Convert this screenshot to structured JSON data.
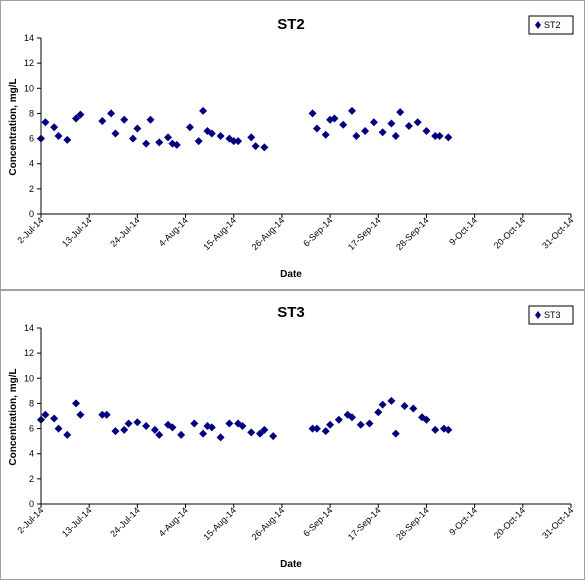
{
  "chart_data": [
    {
      "type": "scatter",
      "title": "ST2",
      "xlabel": "Date",
      "ylabel": "Concentration, mg/L",
      "ylim": [
        0,
        14
      ],
      "yticks": [
        0,
        2,
        4,
        6,
        8,
        10,
        12,
        14
      ],
      "xlim": [
        "2014-07-02",
        "2014-10-31"
      ],
      "xtick_labels": [
        "2-Jul-14",
        "13-Jul-14",
        "24-Jul-14",
        "4-Aug-14",
        "15-Aug-14",
        "26-Aug-14",
        "6-Sep-14",
        "17-Sep-14",
        "28-Sep-14",
        "9-Oct-14",
        "20-Oct-14",
        "31-Oct-14"
      ],
      "legend": "top-right",
      "grid": false,
      "marker_color": "#00007f",
      "series": [
        {
          "name": "ST2",
          "points": [
            [
              "2014-07-02",
              6.0
            ],
            [
              "2014-07-03",
              7.3
            ],
            [
              "2014-07-05",
              6.9
            ],
            [
              "2014-07-06",
              6.2
            ],
            [
              "2014-07-08",
              5.9
            ],
            [
              "2014-07-10",
              7.6
            ],
            [
              "2014-07-11",
              7.9
            ],
            [
              "2014-07-16",
              7.4
            ],
            [
              "2014-07-18",
              8.0
            ],
            [
              "2014-07-19",
              6.4
            ],
            [
              "2014-07-21",
              7.5
            ],
            [
              "2014-07-23",
              6.0
            ],
            [
              "2014-07-24",
              6.8
            ],
            [
              "2014-07-26",
              5.6
            ],
            [
              "2014-07-27",
              7.5
            ],
            [
              "2014-07-29",
              5.7
            ],
            [
              "2014-07-31",
              6.1
            ],
            [
              "2014-08-01",
              5.6
            ],
            [
              "2014-08-02",
              5.5
            ],
            [
              "2014-08-05",
              6.9
            ],
            [
              "2014-08-07",
              5.8
            ],
            [
              "2014-08-08",
              8.2
            ],
            [
              "2014-08-09",
              6.6
            ],
            [
              "2014-08-10",
              6.4
            ],
            [
              "2014-08-12",
              6.2
            ],
            [
              "2014-08-14",
              6.0
            ],
            [
              "2014-08-15",
              5.8
            ],
            [
              "2014-08-16",
              5.8
            ],
            [
              "2014-08-19",
              6.1
            ],
            [
              "2014-08-20",
              5.4
            ],
            [
              "2014-08-22",
              5.3
            ],
            [
              "2014-09-02",
              8.0
            ],
            [
              "2014-09-03",
              6.8
            ],
            [
              "2014-09-05",
              6.3
            ],
            [
              "2014-09-06",
              7.5
            ],
            [
              "2014-09-07",
              7.6
            ],
            [
              "2014-09-09",
              7.1
            ],
            [
              "2014-09-11",
              8.2
            ],
            [
              "2014-09-12",
              6.2
            ],
            [
              "2014-09-14",
              6.6
            ],
            [
              "2014-09-16",
              7.3
            ],
            [
              "2014-09-18",
              6.5
            ],
            [
              "2014-09-20",
              7.2
            ],
            [
              "2014-09-21",
              6.2
            ],
            [
              "2014-09-22",
              8.1
            ],
            [
              "2014-09-24",
              7.0
            ],
            [
              "2014-09-26",
              7.3
            ],
            [
              "2014-09-28",
              6.6
            ],
            [
              "2014-09-30",
              6.2
            ],
            [
              "2014-10-01",
              6.2
            ],
            [
              "2014-10-03",
              6.1
            ]
          ]
        }
      ]
    },
    {
      "type": "scatter",
      "title": "ST3",
      "xlabel": "Date",
      "ylabel": "Concentration, mg/L",
      "ylim": [
        0,
        14
      ],
      "yticks": [
        0,
        2,
        4,
        6,
        8,
        10,
        12,
        14
      ],
      "xlim": [
        "2014-07-02",
        "2014-10-31"
      ],
      "xtick_labels": [
        "2-Jul-14",
        "13-Jul-14",
        "24-Jul-14",
        "4-Aug-14",
        "15-Aug-14",
        "26-Aug-14",
        "6-Sep-14",
        "17-Sep-14",
        "28-Sep-14",
        "9-Oct-14",
        "20-Oct-14",
        "31-Oct-14"
      ],
      "legend": "top-right",
      "grid": false,
      "marker_color": "#00007f",
      "series": [
        {
          "name": "ST3",
          "points": [
            [
              "2014-07-02",
              6.7
            ],
            [
              "2014-07-03",
              7.1
            ],
            [
              "2014-07-05",
              6.8
            ],
            [
              "2014-07-06",
              6.0
            ],
            [
              "2014-07-08",
              5.5
            ],
            [
              "2014-07-10",
              8.0
            ],
            [
              "2014-07-11",
              7.1
            ],
            [
              "2014-07-16",
              7.1
            ],
            [
              "2014-07-17",
              7.1
            ],
            [
              "2014-07-19",
              5.8
            ],
            [
              "2014-07-21",
              5.9
            ],
            [
              "2014-07-22",
              6.4
            ],
            [
              "2014-07-24",
              6.5
            ],
            [
              "2014-07-26",
              6.2
            ],
            [
              "2014-07-28",
              5.9
            ],
            [
              "2014-07-29",
              5.5
            ],
            [
              "2014-07-31",
              6.3
            ],
            [
              "2014-08-01",
              6.1
            ],
            [
              "2014-08-03",
              5.5
            ],
            [
              "2014-08-06",
              6.4
            ],
            [
              "2014-08-08",
              5.6
            ],
            [
              "2014-08-09",
              6.2
            ],
            [
              "2014-08-10",
              6.1
            ],
            [
              "2014-08-12",
              5.3
            ],
            [
              "2014-08-14",
              6.4
            ],
            [
              "2014-08-16",
              6.4
            ],
            [
              "2014-08-17",
              6.2
            ],
            [
              "2014-08-19",
              5.7
            ],
            [
              "2014-08-21",
              5.6
            ],
            [
              "2014-08-22",
              5.9
            ],
            [
              "2014-08-24",
              5.4
            ],
            [
              "2014-09-02",
              6.0
            ],
            [
              "2014-09-03",
              6.0
            ],
            [
              "2014-09-05",
              5.8
            ],
            [
              "2014-09-06",
              6.3
            ],
            [
              "2014-09-08",
              6.7
            ],
            [
              "2014-09-10",
              7.1
            ],
            [
              "2014-09-11",
              6.9
            ],
            [
              "2014-09-13",
              6.3
            ],
            [
              "2014-09-15",
              6.4
            ],
            [
              "2014-09-17",
              7.3
            ],
            [
              "2014-09-18",
              7.9
            ],
            [
              "2014-09-20",
              8.2
            ],
            [
              "2014-09-21",
              5.6
            ],
            [
              "2014-09-23",
              7.8
            ],
            [
              "2014-09-25",
              7.6
            ],
            [
              "2014-09-27",
              6.9
            ],
            [
              "2014-09-28",
              6.7
            ],
            [
              "2014-09-30",
              5.9
            ],
            [
              "2014-10-02",
              6.0
            ],
            [
              "2014-10-03",
              5.9
            ]
          ]
        }
      ]
    }
  ]
}
